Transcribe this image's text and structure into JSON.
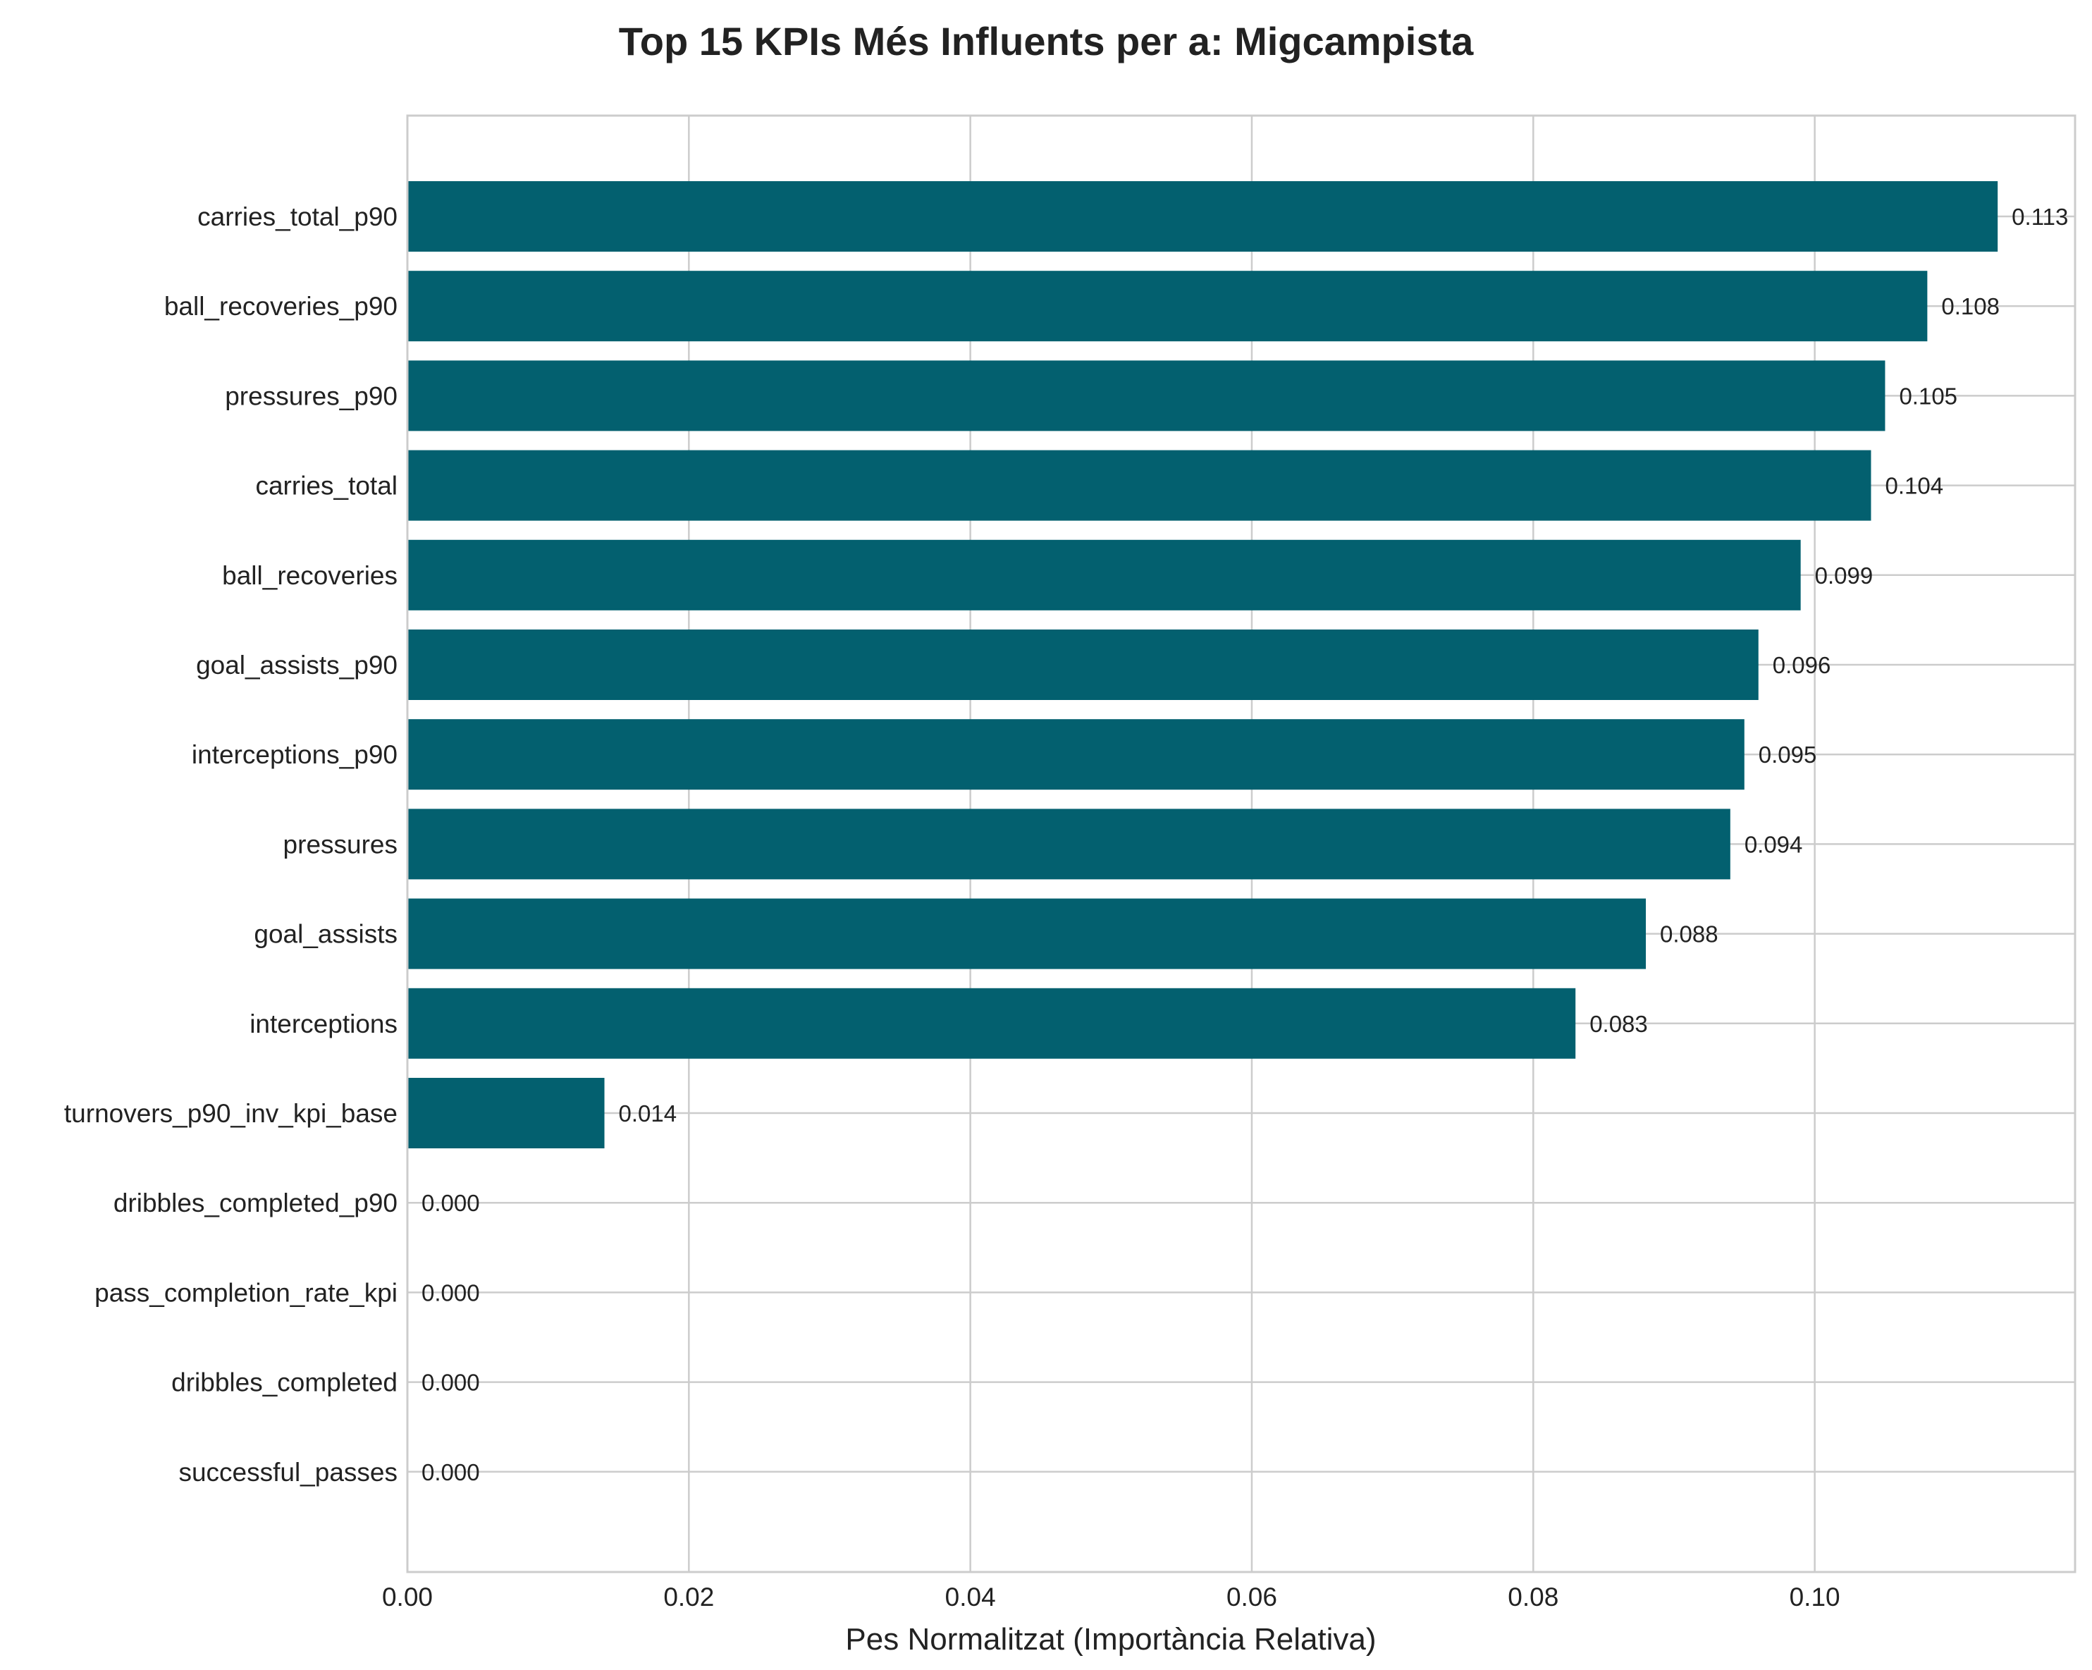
{
  "chart_data": {
    "type": "bar",
    "orientation": "horizontal",
    "title": "Top 15 KPIs Més Influents per a: Migcampista",
    "xlabel": "Pes Normalitzat (Importància Relativa)",
    "ylabel": "",
    "xlim": [
      0,
      0.1185
    ],
    "xticks": [
      "0.00",
      "0.02",
      "0.04",
      "0.06",
      "0.08",
      "0.10"
    ],
    "xtick_values": [
      0,
      0.02,
      0.04,
      0.06,
      0.08,
      0.1
    ],
    "grid": true,
    "bar_color": "#03606f",
    "categories": [
      "carries_total_p90",
      "ball_recoveries_p90",
      "pressures_p90",
      "carries_total",
      "ball_recoveries",
      "goal_assists_p90",
      "interceptions_p90",
      "pressures",
      "goal_assists",
      "interceptions",
      "turnovers_p90_inv_kpi_base",
      "dribbles_completed_p90",
      "pass_completion_rate_kpi",
      "dribbles_completed",
      "successful_passes"
    ],
    "values": [
      0.113,
      0.108,
      0.105,
      0.104,
      0.099,
      0.096,
      0.095,
      0.094,
      0.088,
      0.083,
      0.014,
      0.0,
      0.0,
      0.0,
      0.0
    ],
    "data_labels": [
      "0.113",
      "0.108",
      "0.105",
      "0.104",
      "0.099",
      "0.096",
      "0.095",
      "0.094",
      "0.088",
      "0.083",
      "0.014",
      "0.000",
      "0.000",
      "0.000",
      "0.000"
    ]
  }
}
